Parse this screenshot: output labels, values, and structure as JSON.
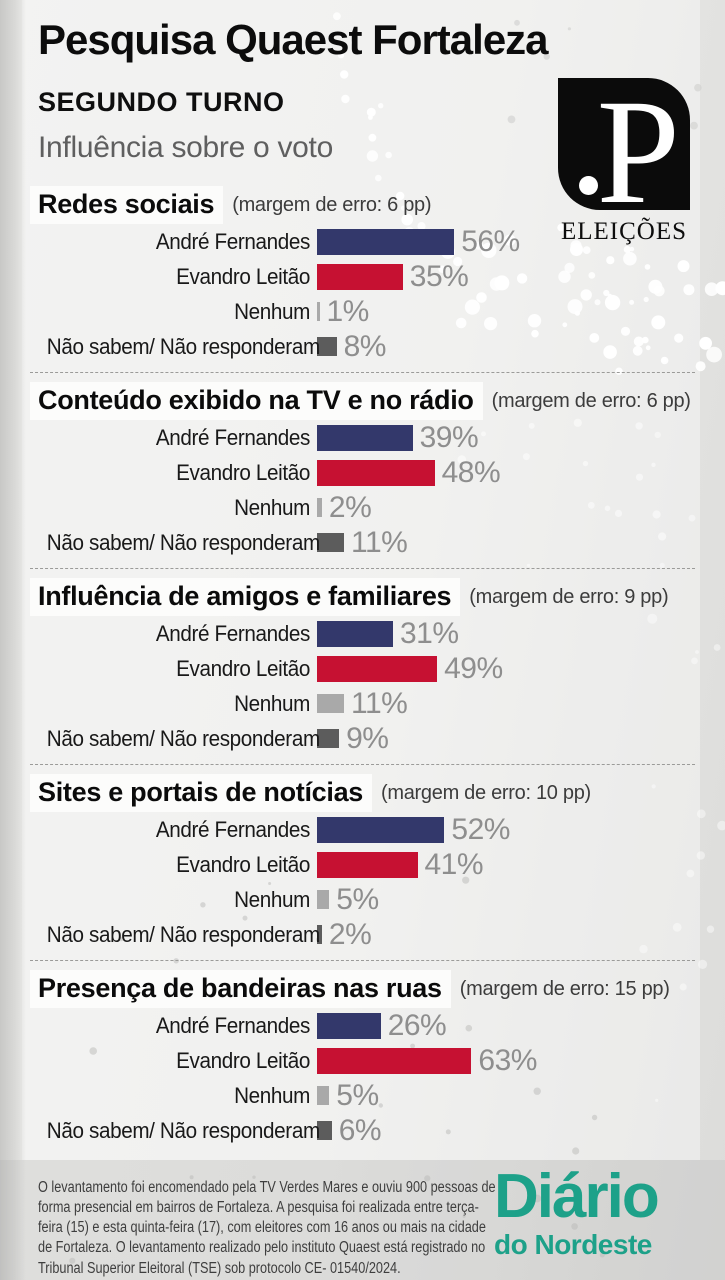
{
  "header": {
    "title": "Pesquisa Quaest Fortaleza",
    "subtitle": "SEGUNDO TURNO",
    "subject": "Influência sobre o voto"
  },
  "logo": {
    "monogram": "P",
    "wordmark": "ELEIÇÕES"
  },
  "colors": {
    "bar_palette": [
      "#33386b",
      "#c61132",
      "#a9a9a9",
      "#5c5c5c"
    ],
    "value_label": "#8e8e8e",
    "brand_teal": "#1da189",
    "logo_black": "#0b0b0b"
  },
  "chart_data": [
    {
      "type": "bar",
      "orientation": "horizontal",
      "title": "Redes sociais",
      "margin_note": "(margem de erro: 6 pp)",
      "categories": [
        "André Fernandes",
        "Evandro Leitão",
        "Nenhum",
        "Não sabem/ Não responderam"
      ],
      "values": [
        56,
        35,
        1,
        8
      ],
      "value_suffix": "%",
      "value_range": [
        0,
        100
      ],
      "grid": false,
      "legend": false
    },
    {
      "type": "bar",
      "orientation": "horizontal",
      "title": "Conteúdo exibido na TV e no rádio",
      "margin_note": "(margem de erro: 6 pp)",
      "categories": [
        "André Fernandes",
        "Evandro Leitão",
        "Nenhum",
        "Não sabem/ Não responderam"
      ],
      "values": [
        39,
        48,
        2,
        11
      ],
      "value_suffix": "%",
      "value_range": [
        0,
        100
      ],
      "grid": false,
      "legend": false
    },
    {
      "type": "bar",
      "orientation": "horizontal",
      "title": "Influência de amigos e familiares",
      "margin_note": "(margem de erro: 9 pp)",
      "categories": [
        "André Fernandes",
        "Evandro Leitão",
        "Nenhum",
        "Não sabem/ Não responderam"
      ],
      "values": [
        31,
        49,
        11,
        9
      ],
      "value_suffix": "%",
      "value_range": [
        0,
        100
      ],
      "grid": false,
      "legend": false
    },
    {
      "type": "bar",
      "orientation": "horizontal",
      "title": "Sites e portais de notícias",
      "margin_note": "(margem de erro: 10 pp)",
      "categories": [
        "André Fernandes",
        "Evandro Leitão",
        "Nenhum",
        "Não sabem/ Não responderam"
      ],
      "values": [
        52,
        41,
        5,
        2
      ],
      "value_suffix": "%",
      "value_range": [
        0,
        100
      ],
      "grid": false,
      "legend": false
    },
    {
      "type": "bar",
      "orientation": "horizontal",
      "title": "Presença de bandeiras nas ruas",
      "margin_note": "(margem de erro: 15 pp)",
      "categories": [
        "André Fernandes",
        "Evandro Leitão",
        "Nenhum",
        "Não sabem/ Não responderam"
      ],
      "values": [
        26,
        63,
        5,
        6
      ],
      "value_suffix": "%",
      "value_range": [
        0,
        100
      ],
      "grid": false,
      "legend": false
    }
  ],
  "footer": {
    "note": "O levantamento foi encomendado pela TV Verdes Mares e ouviu 900 pessoas de forma presencial em bairros de Fortaleza. A pesquisa foi realizada entre terça-feira (15) e esta quinta-feira (17), com eleitores com 16 anos ou mais na cidade de Fortaleza. O levantamento realizado pelo instituto Quaest está registrado no Tribunal Superior Eleitoral (TSE) sob protocolo CE- 01540/2024.",
    "brand_line1": "Diário",
    "brand_line2": "do Nordeste"
  }
}
